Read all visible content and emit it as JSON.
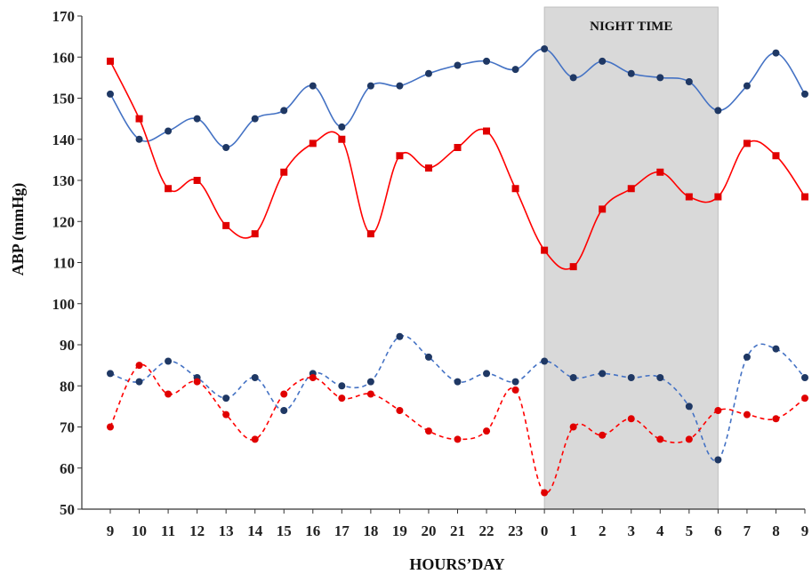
{
  "chart_data": {
    "type": "line",
    "title": "",
    "xlabel": "HOURS’DAY",
    "ylabel": "ABP (mmHg)",
    "ylim": [
      50,
      170
    ],
    "yticks": [
      50,
      60,
      70,
      80,
      90,
      100,
      110,
      120,
      130,
      140,
      150,
      160,
      170
    ],
    "categories": [
      "9",
      "10",
      "11",
      "12",
      "13",
      "14",
      "15",
      "16",
      "17",
      "18",
      "19",
      "20",
      "21",
      "22",
      "23",
      "0",
      "1",
      "2",
      "3",
      "4",
      "5",
      "6",
      "7",
      "8",
      "9"
    ],
    "grid": false,
    "legend": "none",
    "shaded_region": {
      "label": "NIGHT TIME",
      "from_index": 15,
      "to_index": 21,
      "color": "#d9d9d9"
    },
    "series": [
      {
        "color": "#4472c4",
        "style": "solid",
        "marker": "circle",
        "values": [
          151,
          140,
          142,
          145,
          138,
          145,
          147,
          153,
          143,
          153,
          153,
          156,
          158,
          159,
          157,
          162,
          155,
          159,
          156,
          155,
          154,
          147,
          153,
          161,
          151
        ]
      },
      {
        "color": "#ff0000",
        "style": "solid",
        "marker": "square",
        "values": [
          159,
          145,
          128,
          130,
          119,
          117,
          132,
          139,
          140,
          117,
          136,
          133,
          138,
          142,
          128,
          113,
          109,
          123,
          128,
          132,
          126,
          126,
          139,
          136,
          126
        ]
      },
      {
        "color": "#4472c4",
        "style": "dashed",
        "marker": "circle",
        "values": [
          83,
          81,
          86,
          82,
          77,
          82,
          74,
          83,
          80,
          81,
          92,
          87,
          81,
          83,
          81,
          86,
          82,
          83,
          82,
          82,
          75,
          62,
          87,
          89,
          82
        ]
      },
      {
        "color": "#ff0000",
        "style": "dashed",
        "marker": "circle",
        "values": [
          70,
          85,
          78,
          81,
          73,
          67,
          78,
          82,
          77,
          78,
          74,
          69,
          67,
          69,
          79,
          54,
          70,
          68,
          72,
          67,
          67,
          74,
          73,
          72,
          77
        ]
      }
    ]
  }
}
